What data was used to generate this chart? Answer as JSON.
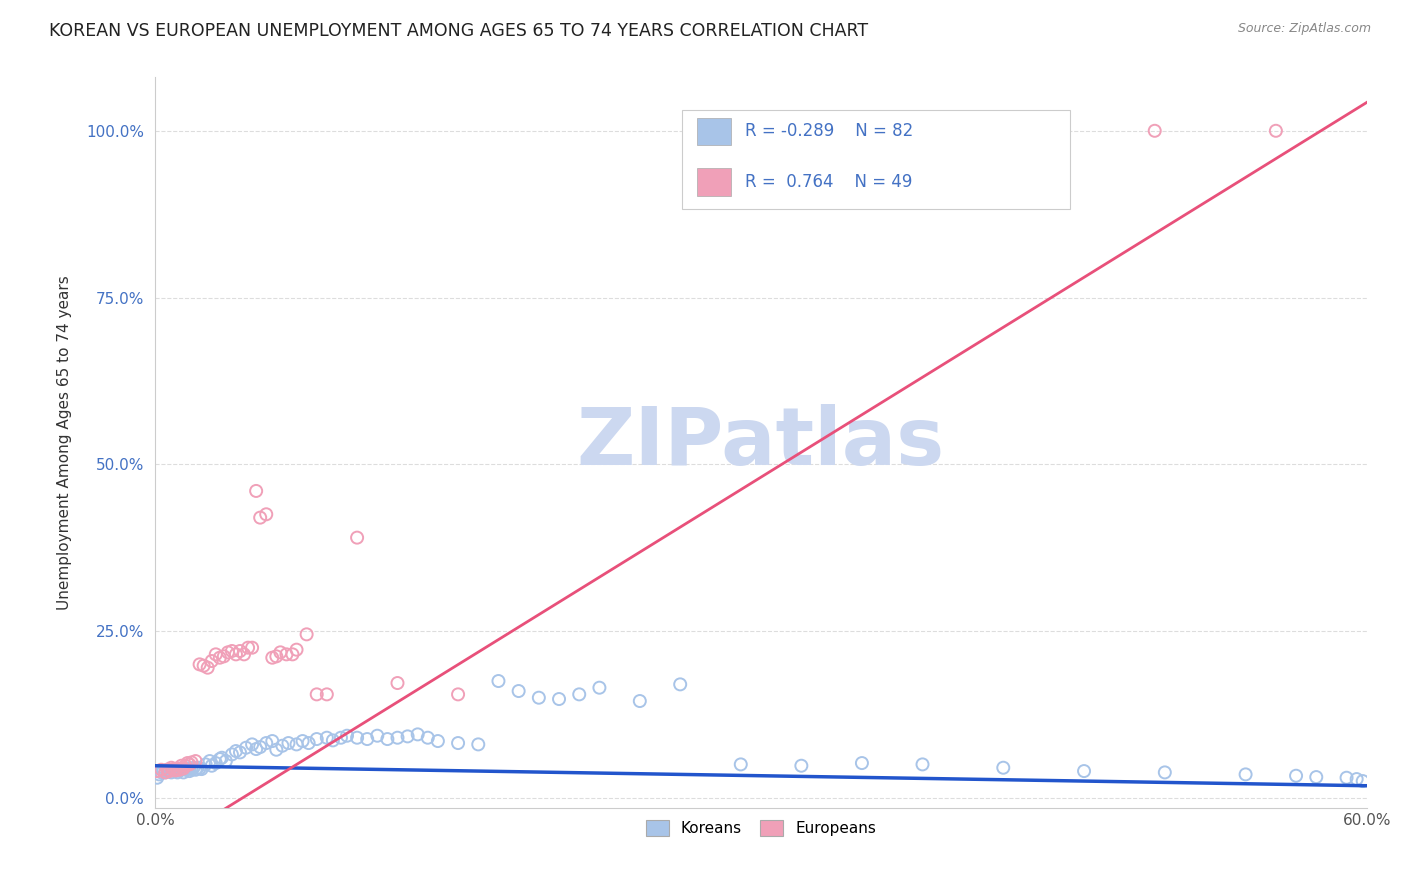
{
  "title": "KOREAN VS EUROPEAN UNEMPLOYMENT AMONG AGES 65 TO 74 YEARS CORRELATION CHART",
  "source": "Source: ZipAtlas.com",
  "ylabel": "Unemployment Among Ages 65 to 74 years",
  "xlim": [
    0.0,
    0.6
  ],
  "ylim": [
    -0.015,
    1.08
  ],
  "yticks": [
    0.0,
    0.25,
    0.5,
    0.75,
    1.0
  ],
  "ytick_labels": [
    "0.0%",
    "25.0%",
    "50.0%",
    "75.0%",
    "100.0%"
  ],
  "xticks": [
    0.0,
    0.1,
    0.2,
    0.3,
    0.4,
    0.5,
    0.6
  ],
  "xtick_labels": [
    "0.0%",
    "",
    "",
    "",
    "",
    "",
    "60.0%"
  ],
  "background_color": "#ffffff",
  "grid_color": "#dddddd",
  "korean_color": "#a8c4e8",
  "european_color": "#f0a0b8",
  "korean_line_color": "#2255cc",
  "european_line_color": "#e8507a",
  "watermark_text": "ZIPatlas",
  "watermark_color": "#ccd8f0",
  "korean_line": [
    0.0,
    0.6,
    0.048,
    0.018
  ],
  "european_line": [
    -0.01,
    0.62,
    -0.1,
    1.08
  ],
  "koreans_x": [
    0.001,
    0.002,
    0.003,
    0.004,
    0.005,
    0.006,
    0.007,
    0.008,
    0.009,
    0.01,
    0.011,
    0.012,
    0.013,
    0.014,
    0.015,
    0.016,
    0.017,
    0.018,
    0.019,
    0.02,
    0.021,
    0.022,
    0.023,
    0.025,
    0.027,
    0.028,
    0.03,
    0.032,
    0.033,
    0.035,
    0.038,
    0.04,
    0.042,
    0.045,
    0.048,
    0.05,
    0.052,
    0.055,
    0.058,
    0.06,
    0.063,
    0.066,
    0.07,
    0.073,
    0.076,
    0.08,
    0.085,
    0.088,
    0.092,
    0.095,
    0.1,
    0.105,
    0.11,
    0.115,
    0.12,
    0.125,
    0.13,
    0.135,
    0.14,
    0.15,
    0.16,
    0.17,
    0.18,
    0.19,
    0.2,
    0.21,
    0.22,
    0.24,
    0.26,
    0.29,
    0.32,
    0.35,
    0.38,
    0.42,
    0.46,
    0.5,
    0.54,
    0.565,
    0.575,
    0.59,
    0.595,
    0.598
  ],
  "koreans_y": [
    0.03,
    0.035,
    0.038,
    0.04,
    0.038,
    0.042,
    0.04,
    0.038,
    0.042,
    0.04,
    0.038,
    0.041,
    0.044,
    0.038,
    0.042,
    0.044,
    0.04,
    0.043,
    0.045,
    0.042,
    0.045,
    0.044,
    0.043,
    0.05,
    0.055,
    0.048,
    0.052,
    0.058,
    0.06,
    0.055,
    0.065,
    0.07,
    0.068,
    0.075,
    0.08,
    0.073,
    0.076,
    0.082,
    0.085,
    0.072,
    0.078,
    0.082,
    0.08,
    0.085,
    0.082,
    0.088,
    0.09,
    0.086,
    0.09,
    0.093,
    0.09,
    0.088,
    0.093,
    0.088,
    0.09,
    0.092,
    0.095,
    0.09,
    0.085,
    0.082,
    0.08,
    0.175,
    0.16,
    0.15,
    0.148,
    0.155,
    0.165,
    0.145,
    0.17,
    0.05,
    0.048,
    0.052,
    0.05,
    0.045,
    0.04,
    0.038,
    0.035,
    0.033,
    0.031,
    0.03,
    0.028,
    0.025
  ],
  "europeans_x": [
    0.001,
    0.003,
    0.005,
    0.006,
    0.007,
    0.008,
    0.009,
    0.01,
    0.011,
    0.012,
    0.013,
    0.014,
    0.015,
    0.016,
    0.017,
    0.018,
    0.02,
    0.022,
    0.024,
    0.026,
    0.028,
    0.03,
    0.032,
    0.034,
    0.036,
    0.038,
    0.04,
    0.042,
    0.044,
    0.046,
    0.048,
    0.05,
    0.052,
    0.055,
    0.058,
    0.06,
    0.062,
    0.065,
    0.068,
    0.07,
    0.075,
    0.08,
    0.085,
    0.1,
    0.12,
    0.15,
    0.335,
    0.495,
    0.555
  ],
  "europeans_y": [
    0.04,
    0.042,
    0.038,
    0.042,
    0.04,
    0.045,
    0.043,
    0.041,
    0.044,
    0.042,
    0.048,
    0.044,
    0.048,
    0.052,
    0.05,
    0.053,
    0.055,
    0.2,
    0.198,
    0.195,
    0.205,
    0.215,
    0.21,
    0.212,
    0.218,
    0.22,
    0.215,
    0.22,
    0.215,
    0.225,
    0.225,
    0.46,
    0.42,
    0.425,
    0.21,
    0.212,
    0.218,
    0.215,
    0.215,
    0.222,
    0.245,
    0.155,
    0.155,
    0.39,
    0.172,
    0.155,
    1.0,
    1.0,
    1.0
  ]
}
